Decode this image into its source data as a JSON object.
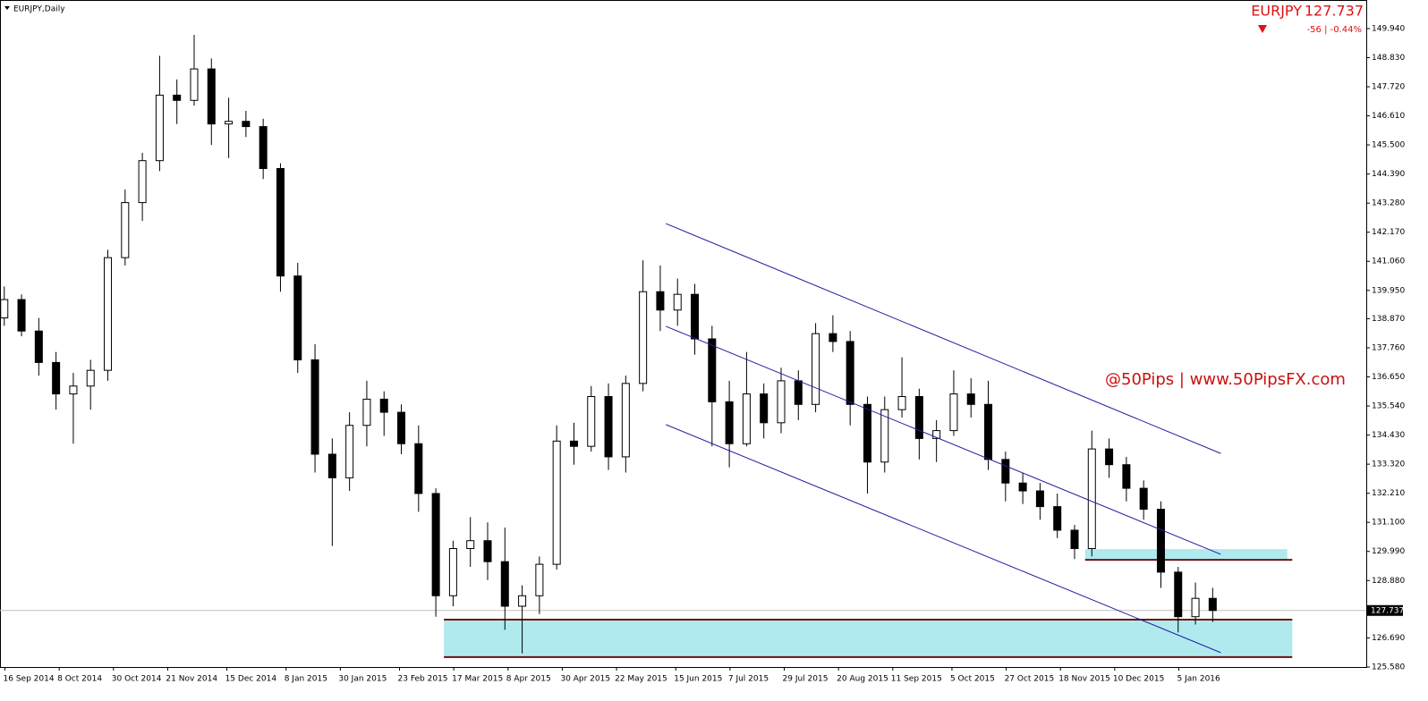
{
  "chart_data": {
    "type": "candlestick",
    "title": "EURJPY,Daily",
    "symbol": "EURJPY",
    "current_price": 127.737,
    "change_label": "-56 | -0.44%",
    "annotation": "@50Pips | www.50PipsFX.com",
    "up_color": "#ffffff",
    "down_color": "#000000",
    "x": [
      "2014-09-15",
      "2014-09-22",
      "2014-09-29",
      "2014-10-06",
      "2014-10-13",
      "2014-10-20",
      "2014-10-27",
      "2014-11-03",
      "2014-11-10",
      "2014-11-17",
      "2014-11-24",
      "2014-12-01",
      "2014-12-08",
      "2014-12-15",
      "2014-12-22",
      "2014-12-29",
      "2015-01-05",
      "2015-01-12",
      "2015-01-19",
      "2015-01-26",
      "2015-02-02",
      "2015-02-09",
      "2015-02-16",
      "2015-02-23",
      "2015-03-02",
      "2015-03-09",
      "2015-03-16",
      "2015-03-23",
      "2015-03-30",
      "2015-04-06",
      "2015-04-13",
      "2015-04-20",
      "2015-04-27",
      "2015-05-04",
      "2015-05-11",
      "2015-05-18",
      "2015-05-25",
      "2015-06-01",
      "2015-06-08",
      "2015-06-15",
      "2015-06-22",
      "2015-06-29",
      "2015-07-06",
      "2015-07-13",
      "2015-07-20",
      "2015-07-27",
      "2015-08-03",
      "2015-08-10",
      "2015-08-17",
      "2015-08-24",
      "2015-08-31",
      "2015-09-07",
      "2015-09-14",
      "2015-09-21",
      "2015-09-28",
      "2015-10-05",
      "2015-10-12",
      "2015-10-19",
      "2015-10-26",
      "2015-11-02",
      "2015-11-09",
      "2015-11-16",
      "2015-11-23",
      "2015-11-30",
      "2015-12-07",
      "2015-12-14",
      "2015-12-21",
      "2015-12-28",
      "2016-01-04",
      "2016-01-11",
      "2016-01-18"
    ],
    "open": [
      138.9,
      139.6,
      138.4,
      137.2,
      136.0,
      136.3,
      136.9,
      141.2,
      143.3,
      144.9,
      147.4,
      147.2,
      148.4,
      146.3,
      146.4,
      146.2,
      144.6,
      140.5,
      137.3,
      133.7,
      132.8,
      134.8,
      135.8,
      135.3,
      134.1,
      132.2,
      128.3,
      130.1,
      130.4,
      129.6,
      127.9,
      128.3,
      129.5,
      134.2,
      134.0,
      135.9,
      133.6,
      136.4,
      139.9,
      139.2,
      139.8,
      138.1,
      135.7,
      134.1,
      136.0,
      134.9,
      136.5,
      135.6,
      138.3,
      138.0,
      135.6,
      133.4,
      135.4,
      135.9,
      134.3,
      134.6,
      136.0,
      135.6,
      133.5,
      132.6,
      132.3,
      131.7,
      130.8,
      130.1,
      133.9,
      133.3,
      132.4,
      131.6,
      129.2,
      127.5,
      128.2
    ],
    "high": [
      140.1,
      139.8,
      138.9,
      137.6,
      136.8,
      137.3,
      141.5,
      143.8,
      145.2,
      148.9,
      148.0,
      149.7,
      148.8,
      147.3,
      146.8,
      146.5,
      144.8,
      141.0,
      137.9,
      134.3,
      135.3,
      136.5,
      136.1,
      135.6,
      134.8,
      132.4,
      130.4,
      131.3,
      131.1,
      130.9,
      128.7,
      129.8,
      134.8,
      134.9,
      136.3,
      136.4,
      136.7,
      141.1,
      140.9,
      140.4,
      140.2,
      138.6,
      136.5,
      137.6,
      136.4,
      137.0,
      136.9,
      138.7,
      139.0,
      138.4,
      135.9,
      135.9,
      137.4,
      136.2,
      135.0,
      136.9,
      136.6,
      136.5,
      133.8,
      133.0,
      132.6,
      132.2,
      131.0,
      134.6,
      134.3,
      133.6,
      132.7,
      131.9,
      129.4,
      128.8,
      128.6
    ],
    "low": [
      138.6,
      138.2,
      136.7,
      135.4,
      134.1,
      135.4,
      136.5,
      140.9,
      142.6,
      144.5,
      146.3,
      147.0,
      145.5,
      145.0,
      145.8,
      144.2,
      139.9,
      136.8,
      133.0,
      130.2,
      132.3,
      134.0,
      134.4,
      133.7,
      131.5,
      127.5,
      127.9,
      129.4,
      128.9,
      127.0,
      126.1,
      127.6,
      129.3,
      133.3,
      133.8,
      133.1,
      133.0,
      136.1,
      138.4,
      138.6,
      137.5,
      134.0,
      133.2,
      134.0,
      134.3,
      134.5,
      135.0,
      135.3,
      137.6,
      134.8,
      132.2,
      133.0,
      135.1,
      133.5,
      133.4,
      134.4,
      135.1,
      133.1,
      131.9,
      131.8,
      131.2,
      130.5,
      129.7,
      129.8,
      132.8,
      131.9,
      131.2,
      128.6,
      126.9,
      127.2,
      127.3
    ],
    "close": [
      139.6,
      138.4,
      137.2,
      136.0,
      136.3,
      136.9,
      141.2,
      143.3,
      144.9,
      147.4,
      147.2,
      148.4,
      146.3,
      146.4,
      146.2,
      144.6,
      140.5,
      137.3,
      133.7,
      132.8,
      134.8,
      135.8,
      135.3,
      134.1,
      132.2,
      128.3,
      130.1,
      130.4,
      129.6,
      127.9,
      128.3,
      129.5,
      134.2,
      134.0,
      135.9,
      133.6,
      136.4,
      139.9,
      139.2,
      139.8,
      138.1,
      135.7,
      134.1,
      136.0,
      134.9,
      136.5,
      135.6,
      138.3,
      138.0,
      135.6,
      133.4,
      135.4,
      135.9,
      134.3,
      134.6,
      136.0,
      135.6,
      133.5,
      132.6,
      132.3,
      131.7,
      130.8,
      130.1,
      133.9,
      133.3,
      132.4,
      131.6,
      129.2,
      127.5,
      128.2,
      127.737
    ],
    "xlim": [
      "2014-09-14",
      "2016-03-21"
    ],
    "xticks": [
      {
        "value": "2014-09-16",
        "label": "16 Sep 2014"
      },
      {
        "value": "2014-10-08",
        "label": "8 Oct 2014"
      },
      {
        "value": "2014-10-30",
        "label": "30 Oct 2014"
      },
      {
        "value": "2014-11-21",
        "label": "21 Nov 2014"
      },
      {
        "value": "2014-12-15",
        "label": "15 Dec 2014"
      },
      {
        "value": "2015-01-08",
        "label": "8 Jan 2015"
      },
      {
        "value": "2015-01-30",
        "label": "30 Jan 2015"
      },
      {
        "value": "2015-02-23",
        "label": "23 Feb 2015"
      },
      {
        "value": "2015-03-17",
        "label": "17 Mar 2015"
      },
      {
        "value": "2015-04-08",
        "label": "8 Apr 2015"
      },
      {
        "value": "2015-04-30",
        "label": "30 Apr 2015"
      },
      {
        "value": "2015-05-22",
        "label": "22 May 2015"
      },
      {
        "value": "2015-06-15",
        "label": "15 Jun 2015"
      },
      {
        "value": "2015-07-07",
        "label": "7 Jul 2015"
      },
      {
        "value": "2015-07-29",
        "label": "29 Jul 2015"
      },
      {
        "value": "2015-08-20",
        "label": "20 Aug 2015"
      },
      {
        "value": "2015-09-11",
        "label": "11 Sep 2015"
      },
      {
        "value": "2015-10-05",
        "label": "5 Oct 2015"
      },
      {
        "value": "2015-10-27",
        "label": "27 Oct 2015"
      },
      {
        "value": "2015-11-18",
        "label": "18 Nov 2015"
      },
      {
        "value": "2015-12-10",
        "label": "10 Dec 2015"
      },
      {
        "value": "2016-01-05",
        "label": "5 Jan 2016"
      }
    ],
    "ylim": [
      125.58,
      151.03
    ],
    "yticks": [
      {
        "value": 149.94,
        "label": "149.940"
      },
      {
        "value": 148.83,
        "label": "148.830"
      },
      {
        "value": 147.72,
        "label": "147.720"
      },
      {
        "value": 146.61,
        "label": "146.610"
      },
      {
        "value": 145.5,
        "label": "145.500"
      },
      {
        "value": 144.39,
        "label": "144.390"
      },
      {
        "value": 143.28,
        "label": "143.280"
      },
      {
        "value": 142.17,
        "label": "142.170"
      },
      {
        "value": 141.06,
        "label": "141.060"
      },
      {
        "value": 139.95,
        "label": "139.950"
      },
      {
        "value": 138.87,
        "label": "138.870"
      },
      {
        "value": 137.76,
        "label": "137.760"
      },
      {
        "value": 136.65,
        "label": "136.650"
      },
      {
        "value": 135.54,
        "label": "135.540"
      },
      {
        "value": 134.43,
        "label": "134.430"
      },
      {
        "value": 133.32,
        "label": "133.320"
      },
      {
        "value": 132.21,
        "label": "132.210"
      },
      {
        "value": 131.1,
        "label": "131.100"
      },
      {
        "value": 129.99,
        "label": "129.990"
      },
      {
        "value": 128.88,
        "label": "128.880"
      },
      {
        "value": 126.69,
        "label": "126.690"
      },
      {
        "value": 125.58,
        "label": "125.580"
      }
    ],
    "trendlines": [
      {
        "x": [
          "2015-06-11",
          "2016-01-22"
        ],
        "y": [
          142.5,
          133.73
        ],
        "color": "#1f1f9f"
      },
      {
        "x": [
          "2015-06-11",
          "2016-01-22"
        ],
        "y": [
          138.58,
          129.88
        ],
        "color": "#1f1f9f"
      },
      {
        "x": [
          "2015-06-11",
          "2016-01-22"
        ],
        "y": [
          134.83,
          126.13
        ],
        "color": "#1f1f9f"
      }
    ],
    "zones": [
      {
        "x": [
          "2015-03-13",
          "2016-02-20"
        ],
        "y": [
          125.96,
          127.39
        ],
        "color": "#b0eaee"
      },
      {
        "x": [
          "2015-11-28",
          "2016-02-18"
        ],
        "y": [
          129.67,
          130.08
        ],
        "color": "#b0eaee"
      }
    ],
    "hlines": [
      {
        "x": [
          "2015-03-13",
          "2016-02-20"
        ],
        "y": 127.39,
        "color": "#6b1010"
      },
      {
        "x": [
          "2015-03-13",
          "2016-02-20"
        ],
        "y": 125.96,
        "color": "#6b1010"
      },
      {
        "x": [
          "2015-11-28",
          "2016-02-20"
        ],
        "y": 129.67,
        "color": "#6b1010"
      }
    ]
  }
}
